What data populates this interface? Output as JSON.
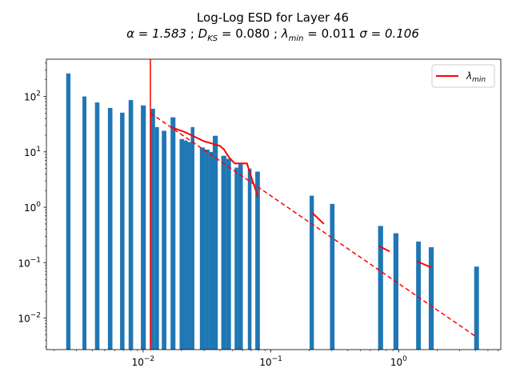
{
  "chart_data": {
    "type": "bar",
    "title_line1": "Log-Log ESD for Layer 46",
    "title_line2_parts": {
      "alpha": "α = 1.583",
      "dks_label": "D",
      "dks_sub": "KS",
      "dks_val": " = 0.080",
      "lmin_label": "λ",
      "lmin_sub": "min",
      "lmin_val": " = 0.011",
      "sigma": "σ = 0.106"
    },
    "x_scale": "log",
    "y_scale": "log",
    "xlim": [
      0.00175,
      6.3
    ],
    "ylim": [
      0.0027,
      470
    ],
    "x_ticks": [
      {
        "value": 0.01,
        "base": "10",
        "exp": "−2"
      },
      {
        "value": 0.1,
        "base": "10",
        "exp": "−1"
      },
      {
        "value": 1,
        "base": "10",
        "exp": "0"
      }
    ],
    "y_ticks": [
      {
        "value": 0.01,
        "base": "10",
        "exp": "−2"
      },
      {
        "value": 0.1,
        "base": "10",
        "exp": "−1"
      },
      {
        "value": 1,
        "base": "10",
        "exp": "0"
      },
      {
        "value": 10,
        "base": "10",
        "exp": "1"
      },
      {
        "value": 100,
        "base": "10",
        "exp": "2"
      }
    ],
    "bar_color": "#1f77b4",
    "bars": [
      {
        "x0": 0.0025,
        "x1": 0.0027,
        "y": 260
      },
      {
        "x0": 0.00335,
        "x1": 0.0036,
        "y": 100
      },
      {
        "x0": 0.0042,
        "x1": 0.00455,
        "y": 78
      },
      {
        "x0": 0.0053,
        "x1": 0.00575,
        "y": 62
      },
      {
        "x0": 0.0066,
        "x1": 0.00715,
        "y": 51
      },
      {
        "x0": 0.0077,
        "x1": 0.00835,
        "y": 86
      },
      {
        "x0": 0.0096,
        "x1": 0.0105,
        "y": 69
      },
      {
        "x0": 0.0115,
        "x1": 0.0124,
        "y": 60
      },
      {
        "x0": 0.0124,
        "x1": 0.0133,
        "y": 28
      },
      {
        "x0": 0.014,
        "x1": 0.0152,
        "y": 24
      },
      {
        "x0": 0.0164,
        "x1": 0.0179,
        "y": 42
      },
      {
        "x0": 0.0193,
        "x1": 0.0209,
        "y": 17
      },
      {
        "x0": 0.0209,
        "x1": 0.0223,
        "y": 16
      },
      {
        "x0": 0.0223,
        "x1": 0.0236,
        "y": 15
      },
      {
        "x0": 0.0236,
        "x1": 0.0252,
        "y": 28
      },
      {
        "x0": 0.0278,
        "x1": 0.0304,
        "y": 12
      },
      {
        "x0": 0.0304,
        "x1": 0.0331,
        "y": 11
      },
      {
        "x0": 0.0331,
        "x1": 0.0351,
        "y": 10
      },
      {
        "x0": 0.0351,
        "x1": 0.0384,
        "y": 19.5
      },
      {
        "x0": 0.0409,
        "x1": 0.0448,
        "y": 8.5
      },
      {
        "x0": 0.0448,
        "x1": 0.0487,
        "y": 7.5
      },
      {
        "x0": 0.052,
        "x1": 0.0556,
        "y": 5.2
      },
      {
        "x0": 0.0556,
        "x1": 0.0603,
        "y": 6.0
      },
      {
        "x0": 0.066,
        "x1": 0.0705,
        "y": 5.0
      },
      {
        "x0": 0.0755,
        "x1": 0.082,
        "y": 4.4
      },
      {
        "x0": 0.201,
        "x1": 0.217,
        "y": 1.62
      },
      {
        "x0": 0.29,
        "x1": 0.315,
        "y": 1.15
      },
      {
        "x0": 0.69,
        "x1": 0.755,
        "y": 0.46
      },
      {
        "x0": 0.91,
        "x1": 0.995,
        "y": 0.34
      },
      {
        "x0": 1.37,
        "x1": 1.49,
        "y": 0.24
      },
      {
        "x0": 1.72,
        "x1": 1.88,
        "y": 0.19
      },
      {
        "x0": 3.9,
        "x1": 4.25,
        "y": 0.085
      }
    ],
    "fit_line": {
      "color": "#ff0000",
      "style": "dashed",
      "points": [
        [
          0.0114,
          50
        ],
        [
          4.1,
          0.0045
        ]
      ]
    },
    "pdf_line": {
      "color": "#ff0000",
      "segments": [
        [
          [
            0.0165,
            28
          ],
          [
            0.021,
            23
          ],
          [
            0.025,
            19
          ],
          [
            0.03,
            15.5
          ],
          [
            0.035,
            14
          ],
          [
            0.04,
            12.8
          ],
          [
            0.043,
            11
          ],
          [
            0.047,
            8
          ],
          [
            0.052,
            6.2
          ],
          [
            0.059,
            6.2
          ],
          [
            0.065,
            6.2
          ],
          [
            0.069,
            3.9
          ],
          [
            0.077,
            1.9
          ],
          [
            0.079,
            1.55
          ]
        ],
        [
          [
            0.21,
            0.8
          ],
          [
            0.26,
            0.5
          ]
        ],
        [
          [
            0.7,
            0.2
          ],
          [
            0.85,
            0.16
          ]
        ],
        [
          [
            1.4,
            0.105
          ],
          [
            1.8,
            0.082
          ]
        ]
      ]
    },
    "lambda_min_line": {
      "x": 0.0114,
      "color": "#ff0000"
    },
    "legend": {
      "position": "upper-right",
      "label_main": "λ",
      "label_sub": "min",
      "color": "#ff0000"
    }
  }
}
